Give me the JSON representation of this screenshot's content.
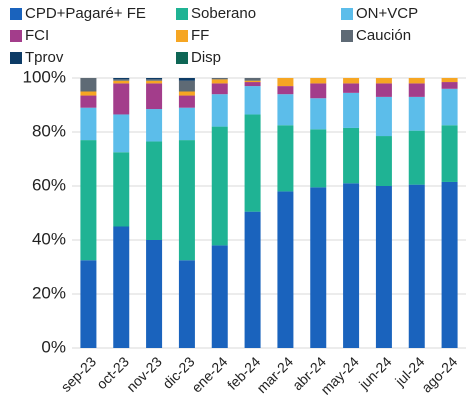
{
  "chart_data": {
    "type": "stacked_bar",
    "categories": [
      "sep-23",
      "oct-23",
      "nov-23",
      "dic-23",
      "ene-24",
      "feb-24",
      "mar-24",
      "abr-24",
      "may-24",
      "jun-24",
      "jul-24",
      "ago-24"
    ],
    "series": [
      {
        "name": "CPD+Pagaré+ FE",
        "color": "#1a63bd",
        "values": [
          32.5,
          45,
          40,
          32.5,
          38,
          50.5,
          58,
          59.5,
          61,
          60,
          60.5,
          61.5
        ]
      },
      {
        "name": "Soberano",
        "color": "#1fb394",
        "values": [
          44.5,
          27.5,
          36.5,
          44.5,
          44,
          36,
          24.5,
          21.5,
          20.5,
          18.5,
          20,
          21
        ]
      },
      {
        "name": "ON+VCP",
        "color": "#5cbdea",
        "values": [
          12,
          14,
          12,
          12,
          12,
          10.5,
          11.5,
          11.5,
          13,
          14.5,
          12.5,
          13.5
        ]
      },
      {
        "name": "FCI",
        "color": "#a33d8b",
        "values": [
          4.5,
          11.5,
          9.5,
          4.5,
          4,
          1.5,
          3,
          5.5,
          3.5,
          5,
          5,
          2.5
        ]
      },
      {
        "name": "FF",
        "color": "#f6a623",
        "values": [
          1.5,
          1,
          1,
          1.5,
          1.5,
          0.5,
          3,
          2,
          2,
          2,
          2,
          1.5
        ]
      },
      {
        "name": "Caución",
        "color": "#5e6a75",
        "values": [
          5,
          0.5,
          0.5,
          4,
          0.5,
          1,
          0,
          0,
          0,
          0,
          0,
          0
        ]
      },
      {
        "name": "Tprov",
        "color": "#0d3b66",
        "values": [
          0,
          0.5,
          0.5,
          1,
          0,
          0,
          0,
          0,
          0,
          0,
          0,
          0
        ]
      },
      {
        "name": "Disp",
        "color": "#0e6655",
        "values": [
          0,
          0,
          0,
          0,
          0,
          0,
          0,
          0,
          0,
          0,
          0,
          0
        ]
      }
    ],
    "ylim": [
      0,
      100
    ],
    "yticks": [
      {
        "value": 0,
        "label": "0%"
      },
      {
        "value": 20,
        "label": "20%"
      },
      {
        "value": 40,
        "label": "40%"
      },
      {
        "value": 60,
        "label": "60%"
      },
      {
        "value": 80,
        "label": "80%"
      },
      {
        "value": 100,
        "label": "100%"
      }
    ],
    "grid": true,
    "legend": "top"
  }
}
